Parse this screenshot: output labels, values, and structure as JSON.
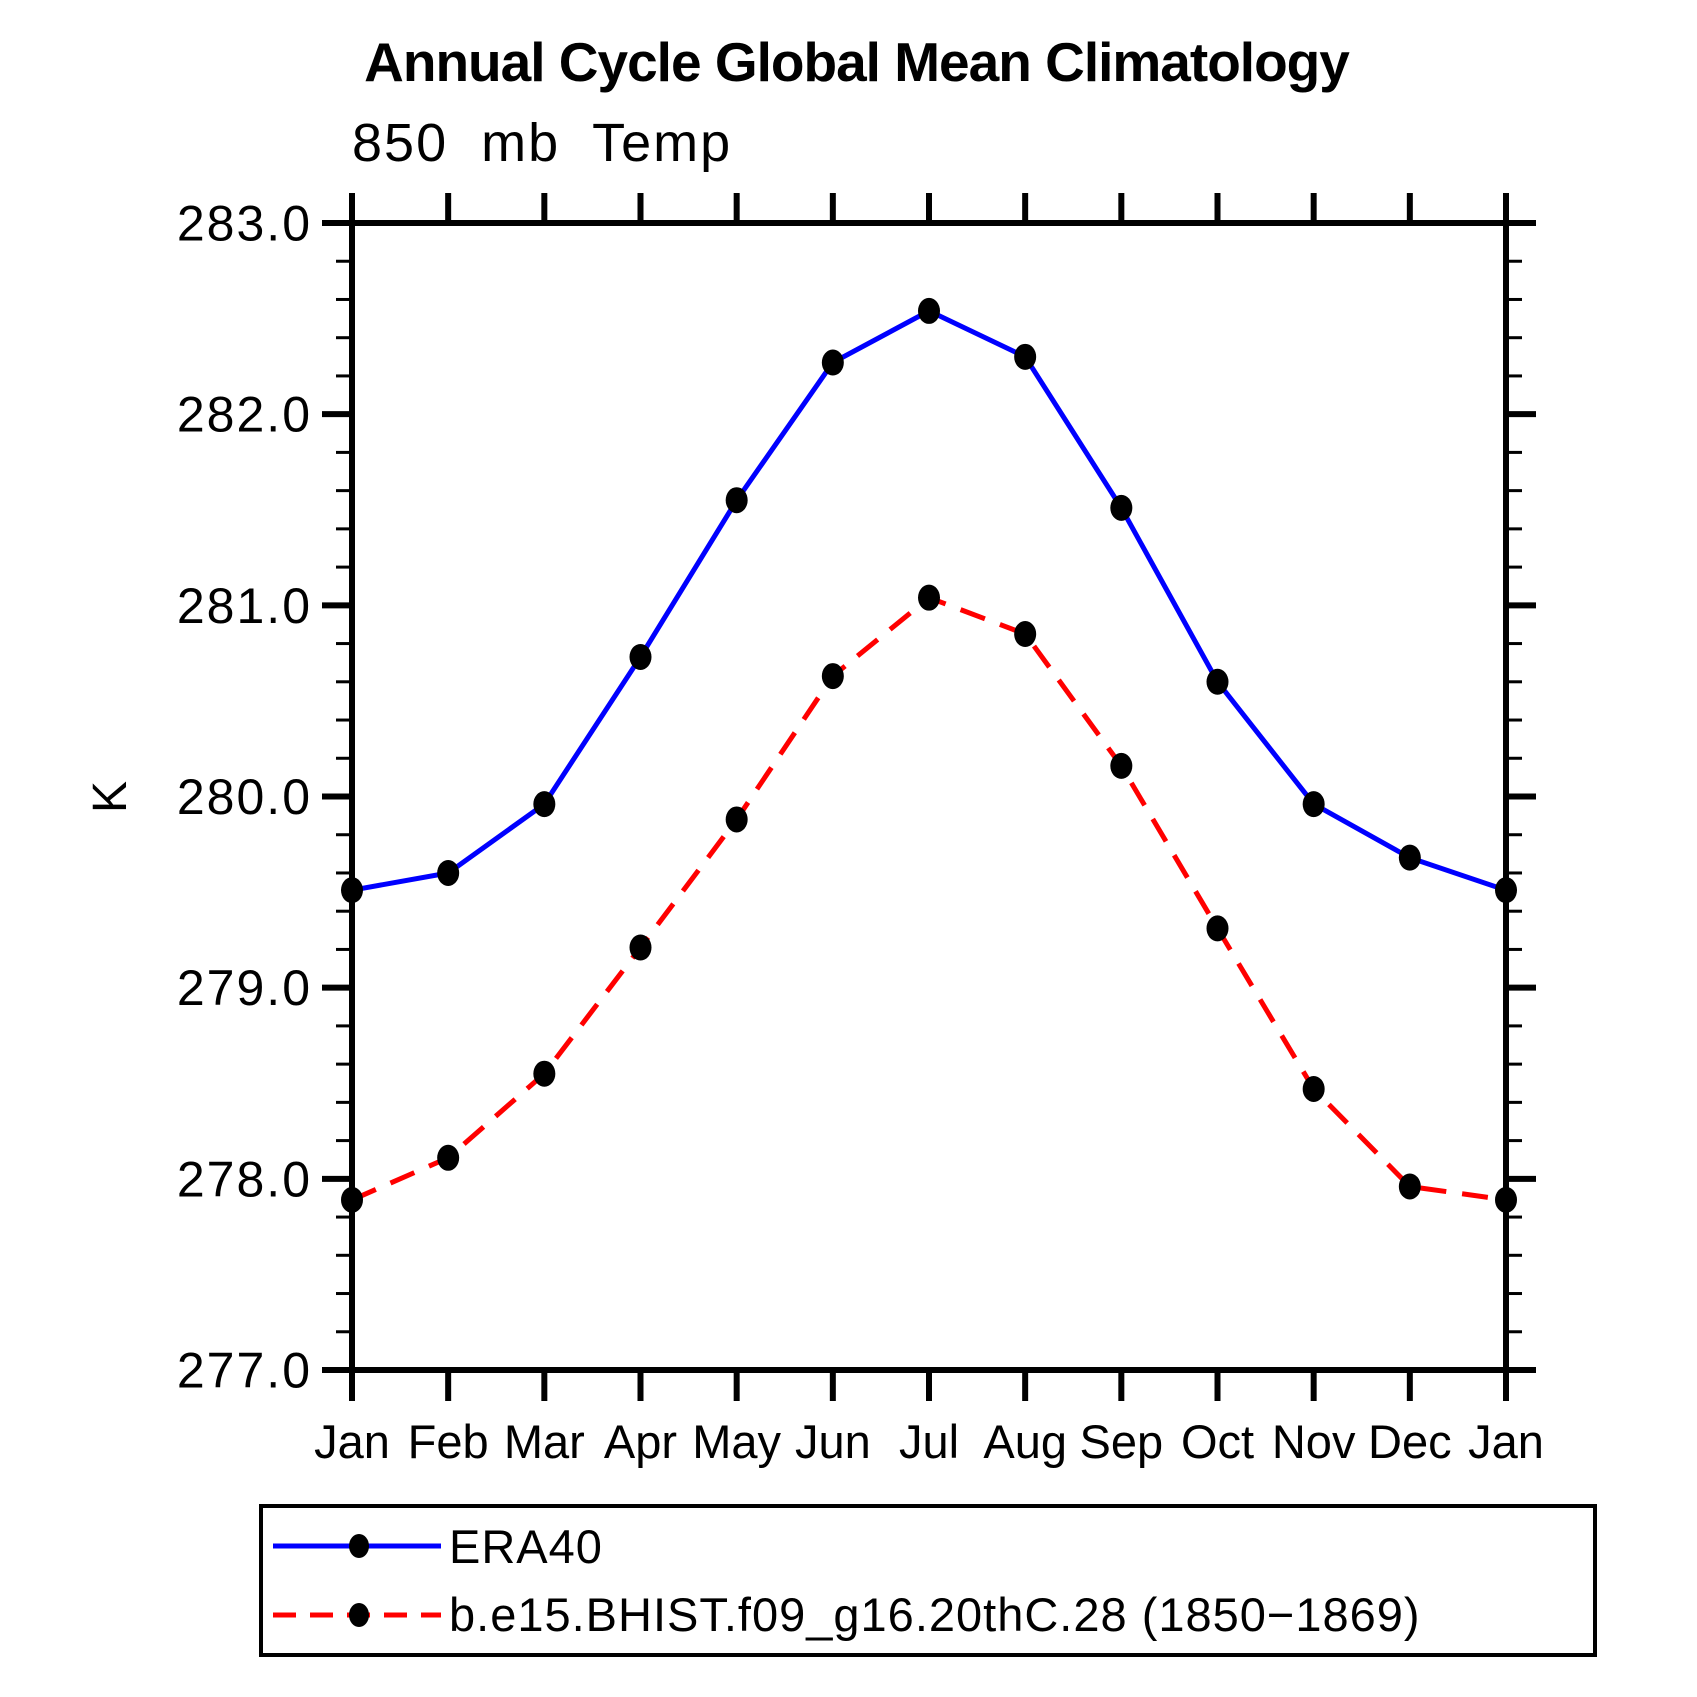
{
  "title": "Annual Cycle Global Mean Climatology",
  "subtitle": "850 mb Temp",
  "chart_data": {
    "type": "line",
    "title": "Annual Cycle Global Mean Climatology",
    "subtitle": "850 mb Temp",
    "ylabel": "K",
    "xlabel": "",
    "categories": [
      "Jan",
      "Feb",
      "Mar",
      "Apr",
      "May",
      "Jun",
      "Jul",
      "Aug",
      "Sep",
      "Oct",
      "Nov",
      "Dec",
      "Jan"
    ],
    "series": [
      {
        "name": "ERA40",
        "color": "#0000ff",
        "line_style": "solid",
        "marker": "filled-circle",
        "marker_color": "#000000",
        "values": [
          279.51,
          279.6,
          279.96,
          280.73,
          281.55,
          282.27,
          282.54,
          282.3,
          281.51,
          280.6,
          279.96,
          279.68,
          279.51
        ]
      },
      {
        "name": "b.e15.BHIST.f09_g16.20thC.28 (1850−1869)",
        "color": "#ff0000",
        "line_style": "dashed",
        "marker": "filled-circle",
        "marker_color": "#000000",
        "values": [
          277.89,
          278.11,
          278.55,
          279.21,
          279.88,
          280.63,
          281.04,
          280.85,
          280.16,
          279.31,
          278.47,
          277.96,
          277.89
        ]
      }
    ],
    "ylim": [
      277.0,
      283.0
    ],
    "ytick_interval": 1.0,
    "yminor_interval": 0.2,
    "ytick_labels": [
      "277.0",
      "278.0",
      "279.0",
      "280.0",
      "281.0",
      "282.0",
      "283.0"
    ],
    "grid": false,
    "legend_position": "bottom",
    "axis_color": "#000000"
  }
}
